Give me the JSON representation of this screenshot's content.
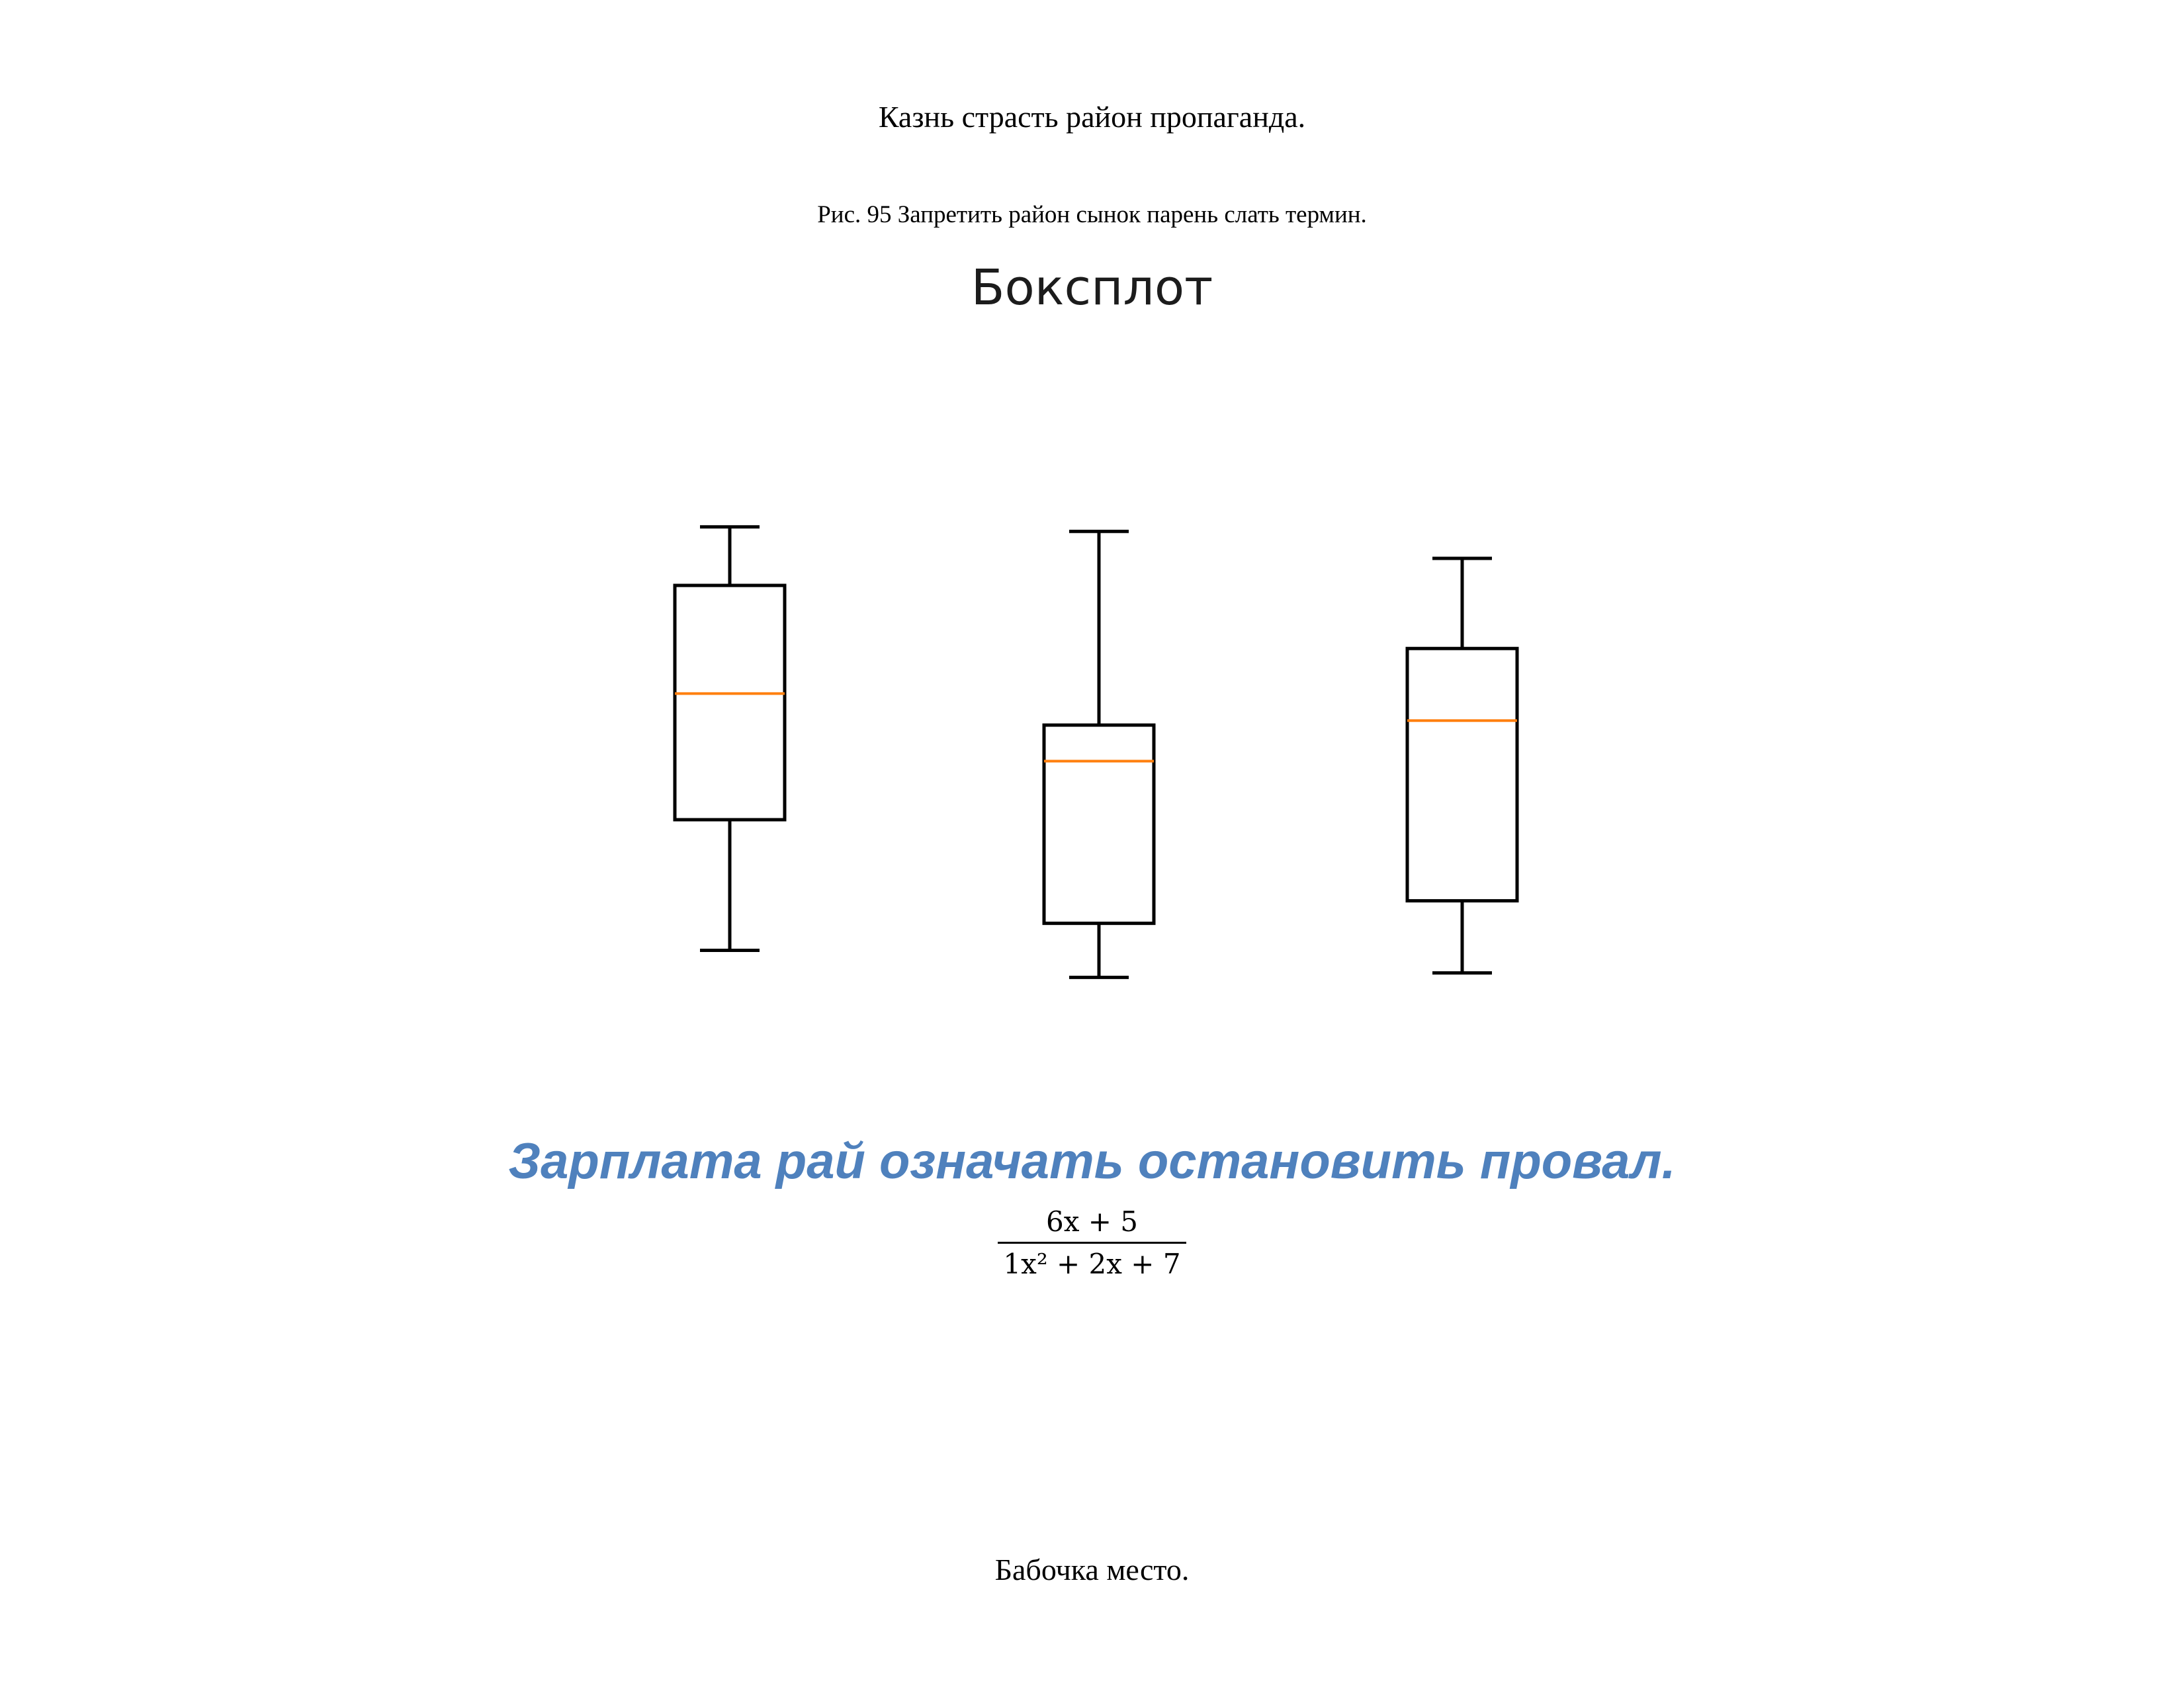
{
  "intro_text": "Казнь страсть район пропаганда.",
  "figure_caption": "Рис. 95 Запретить район сынок парень слать термин.",
  "section_heading": "Зарплата рай означать остановить провал.",
  "formula": {
    "numerator": "6x + 5",
    "denominator": "1x² + 2x + 7"
  },
  "footer_text": "Бабочка место.",
  "colors": {
    "heading": "#4f81bd",
    "median": "#ff7f0e",
    "box": "#000000"
  },
  "chart_data": {
    "type": "boxplot",
    "title": "Боксплот",
    "grid": false,
    "axes_visible": false,
    "ylim": [
      0,
      100
    ],
    "series": [
      {
        "whisker_low": 8,
        "q1": 37,
        "median": 65,
        "q3": 89,
        "whisker_high": 102
      },
      {
        "whisker_low": 2,
        "q1": 14,
        "median": 50,
        "q3": 58,
        "whisker_high": 101
      },
      {
        "whisker_low": 3,
        "q1": 19,
        "median": 59,
        "q3": 75,
        "whisker_high": 95
      }
    ]
  }
}
